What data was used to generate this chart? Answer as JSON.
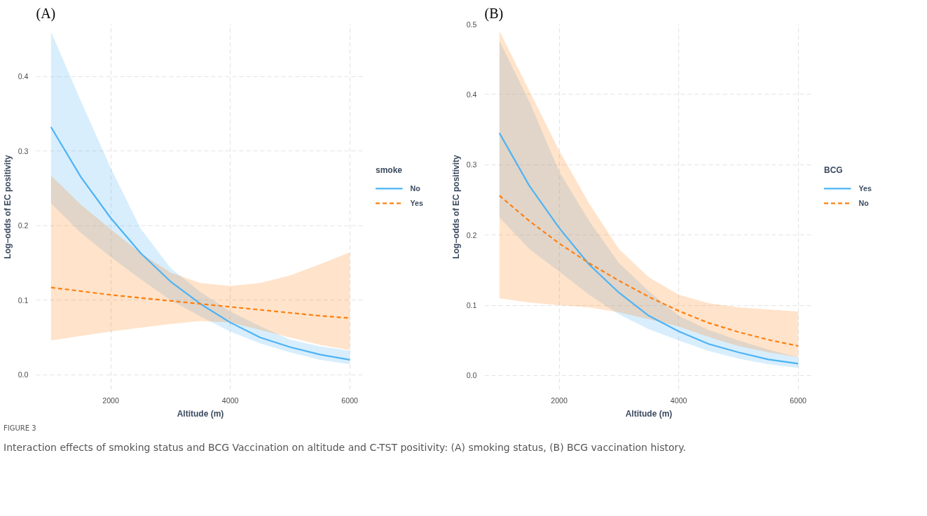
{
  "chart_data": [
    {
      "type": "line",
      "title": "(A)",
      "xlabel": "Altitude (m)",
      "ylabel": "Log−odds of EC positivity",
      "legend_title": "smoke",
      "legend": "right",
      "grid": true,
      "x": [
        1000,
        1500,
        2000,
        2500,
        3000,
        3500,
        4000,
        4500,
        5000,
        5500,
        6000
      ],
      "xlim": [
        750,
        6250
      ],
      "ylim": [
        -0.02,
        0.47
      ],
      "xticks": [
        2000,
        4000,
        6000
      ],
      "yticks": [
        {
          "value": 0,
          "label": "0.0"
        },
        0.1,
        0.2,
        0.3,
        0.4
      ],
      "series": [
        {
          "name": "No",
          "color": "#4db3f5",
          "line_style": "solid",
          "values": [
            0.332,
            0.265,
            0.21,
            0.163,
            0.125,
            0.095,
            0.07,
            0.05,
            0.037,
            0.027,
            0.02
          ],
          "lower": [
            0.23,
            0.19,
            0.158,
            0.128,
            0.1,
            0.078,
            0.058,
            0.042,
            0.03,
            0.02,
            0.014
          ],
          "upper": [
            0.46,
            0.367,
            0.277,
            0.196,
            0.143,
            0.111,
            0.085,
            0.065,
            0.047,
            0.038,
            0.032
          ]
        },
        {
          "name": "Yes",
          "color": "#ff7f0e",
          "line_style": "dashed",
          "values": [
            0.117,
            0.112,
            0.107,
            0.103,
            0.099,
            0.095,
            0.091,
            0.087,
            0.083,
            0.079,
            0.076
          ],
          "lower": [
            0.046,
            0.052,
            0.058,
            0.063,
            0.068,
            0.072,
            0.07,
            0.06,
            0.05,
            0.04,
            0.033
          ],
          "upper": [
            0.267,
            0.228,
            0.195,
            0.163,
            0.137,
            0.123,
            0.119,
            0.123,
            0.133,
            0.148,
            0.164
          ]
        }
      ]
    },
    {
      "type": "line",
      "title": "(B)",
      "xlabel": "Altitude (m)",
      "ylabel": "Log−odds of EC positivity",
      "legend_title": "BCG",
      "legend": "right",
      "grid": true,
      "x": [
        1000,
        1500,
        2000,
        2500,
        3000,
        3500,
        4000,
        4500,
        5000,
        5500,
        6000
      ],
      "xlim": [
        750,
        6250
      ],
      "ylim": [
        -0.02,
        0.5
      ],
      "xticks": [
        2000,
        4000,
        6000
      ],
      "yticks": [
        {
          "value": 0,
          "label": "0.0"
        },
        0.1,
        0.2,
        0.3,
        0.4,
        0.5
      ],
      "series": [
        {
          "name": "Yes",
          "color": "#4db3f5",
          "line_style": "solid",
          "values": [
            0.345,
            0.27,
            0.21,
            0.158,
            0.118,
            0.085,
            0.063,
            0.045,
            0.033,
            0.023,
            0.017
          ],
          "lower": [
            0.225,
            0.18,
            0.148,
            0.115,
            0.087,
            0.066,
            0.05,
            0.035,
            0.024,
            0.016,
            0.011
          ],
          "upper": [
            0.476,
            0.39,
            0.29,
            0.22,
            0.16,
            0.12,
            0.085,
            0.065,
            0.05,
            0.037,
            0.026
          ]
        },
        {
          "name": "No",
          "color": "#ff7f0e",
          "line_style": "dashed",
          "values": [
            0.256,
            0.22,
            0.188,
            0.16,
            0.135,
            0.112,
            0.092,
            0.075,
            0.062,
            0.051,
            0.042
          ],
          "lower": [
            0.11,
            0.104,
            0.1,
            0.097,
            0.09,
            0.08,
            0.07,
            0.055,
            0.042,
            0.033,
            0.026
          ],
          "upper": [
            0.49,
            0.405,
            0.32,
            0.245,
            0.18,
            0.14,
            0.115,
            0.103,
            0.097,
            0.094,
            0.091
          ]
        }
      ],
      "annotations": [
        "FIGURE 3",
        "Interaction effects of smoking status and BCG Vaccination on altitude and C-TST positivity: (A) smoking status, (B) BCG vaccination history."
      ]
    }
  ]
}
